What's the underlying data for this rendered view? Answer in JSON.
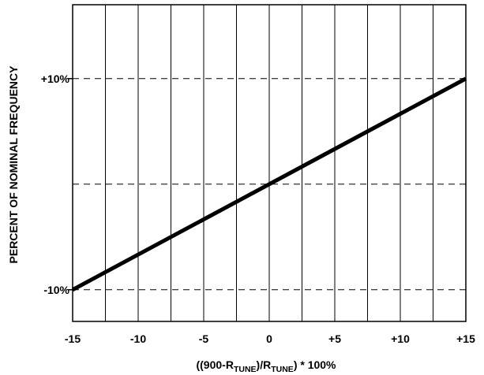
{
  "chart_data": {
    "type": "line",
    "title": "",
    "xlabel": {
      "parts": [
        {
          "text": "((900-R",
          "sub": false
        },
        {
          "text": "TUNE",
          "sub": true
        },
        {
          "text": ")/R",
          "sub": false
        },
        {
          "text": "TUNE",
          "sub": true
        },
        {
          "text": ") * 100%",
          "sub": false
        }
      ]
    },
    "ylabel": "PERCENT OF NOMINAL FREQUENCY",
    "xlim": [
      -15,
      15
    ],
    "ylim": [
      -13,
      17
    ],
    "x_ticks": [
      {
        "value": -15,
        "label": "-15"
      },
      {
        "value": -10,
        "label": "-10"
      },
      {
        "value": -5,
        "label": "-5"
      },
      {
        "value": 0,
        "label": "0"
      },
      {
        "value": 5,
        "label": "+5"
      },
      {
        "value": 10,
        "label": "+10"
      },
      {
        "value": 15,
        "label": "+15"
      }
    ],
    "y_ticks": [
      {
        "value": 10,
        "label": "+10%"
      },
      {
        "value": -10,
        "label": "-10%"
      }
    ],
    "vertical_gridlines_x": [
      -12.5,
      -10,
      -7.5,
      -5,
      -2.5,
      0,
      2.5,
      5,
      7.5,
      10,
      12.5
    ],
    "horizontal_dashed_gridlines_y": [
      10,
      0,
      -10
    ],
    "grid": true,
    "series": [
      {
        "x": [
          -15,
          15
        ],
        "y": [
          -10,
          10
        ],
        "color": "#000000"
      }
    ]
  }
}
